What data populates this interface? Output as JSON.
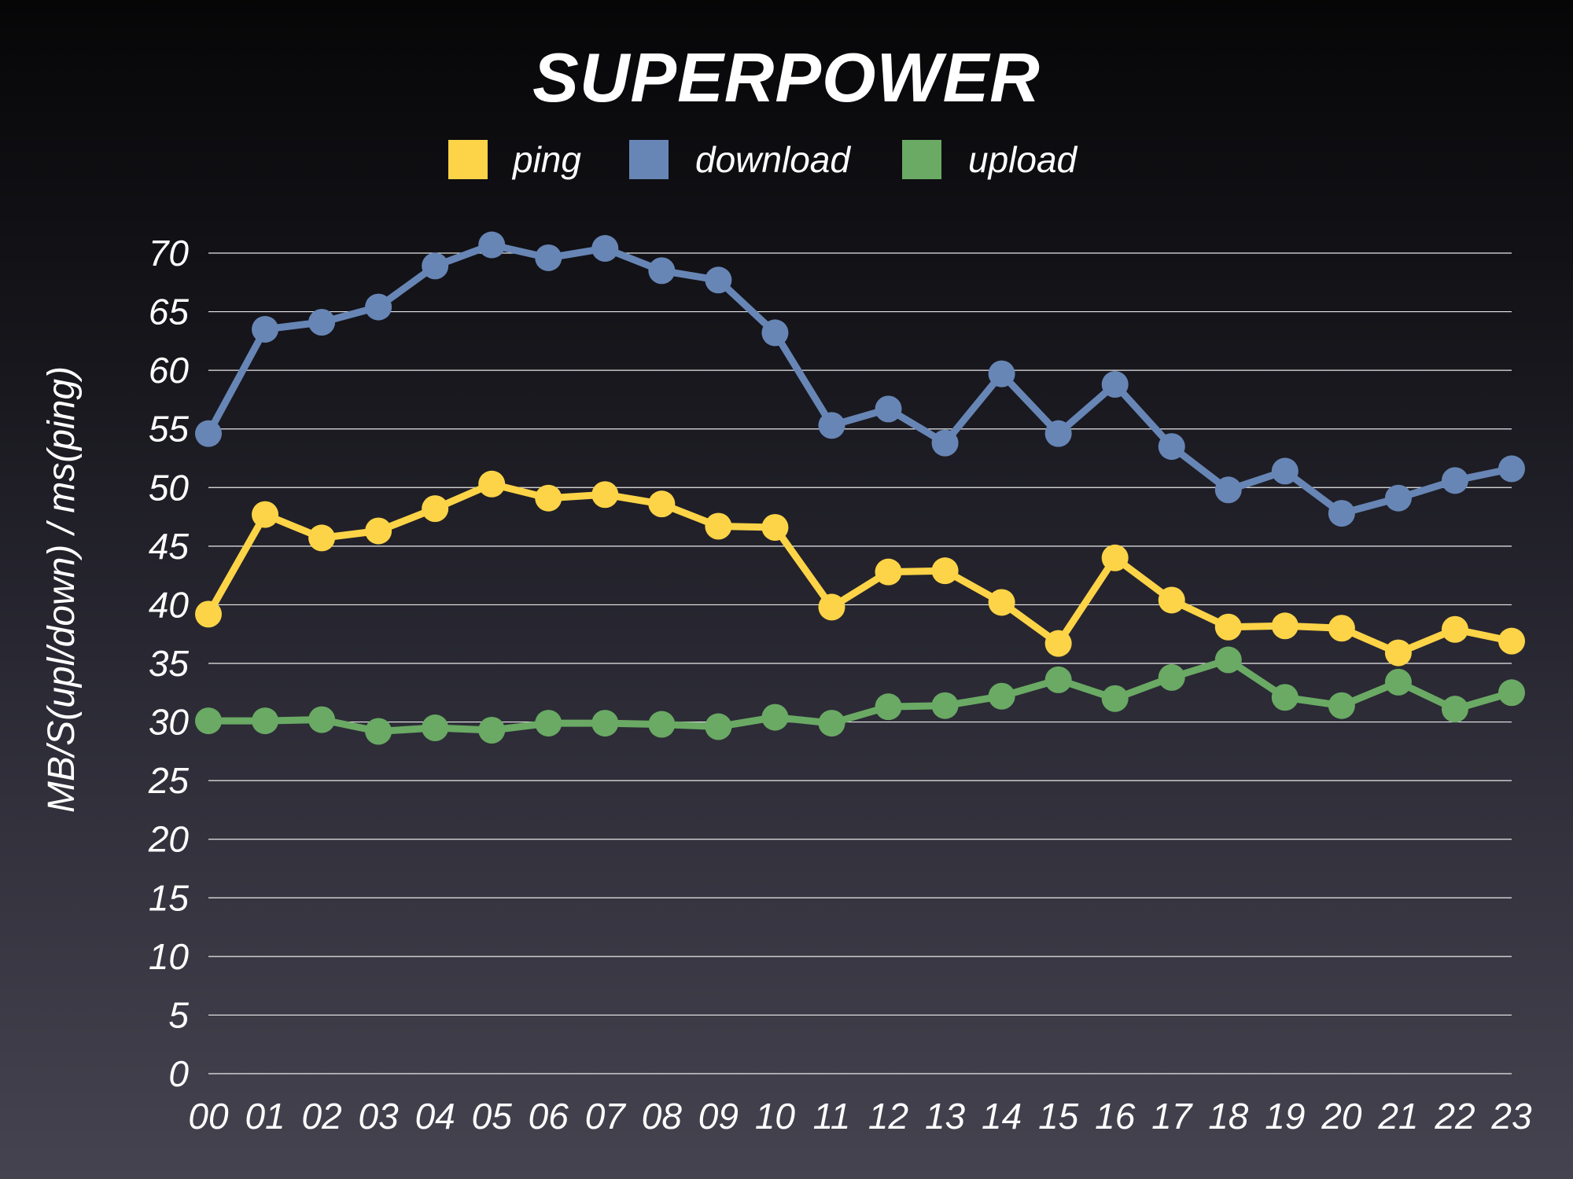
{
  "chart_data": {
    "type": "line",
    "title": "SUPERPOWER",
    "xlabel": "",
    "ylabel": "MB/S(upl/down) / ms(ping)",
    "ylim": [
      0,
      70
    ],
    "yticks": [
      "0",
      "5",
      "10",
      "15",
      "20",
      "25",
      "30",
      "35",
      "40",
      "45",
      "50",
      "55",
      "60",
      "65",
      "70"
    ],
    "categories": [
      "00",
      "01",
      "02",
      "03",
      "04",
      "05",
      "06",
      "07",
      "08",
      "09",
      "10",
      "11",
      "12",
      "13",
      "14",
      "15",
      "16",
      "17",
      "18",
      "19",
      "20",
      "21",
      "22",
      "23"
    ],
    "grid": true,
    "legend_position": "top",
    "series": [
      {
        "name": "ping",
        "color": "#fdd447",
        "values": [
          39.2,
          47.7,
          45.7,
          46.3,
          48.2,
          50.3,
          49.1,
          49.4,
          48.6,
          46.7,
          46.6,
          39.8,
          42.8,
          42.9,
          40.2,
          36.7,
          44.0,
          40.4,
          38.1,
          38.2,
          38.0,
          35.9,
          37.9,
          36.9
        ]
      },
      {
        "name": "download",
        "color": "#6786b6",
        "values": [
          54.6,
          63.5,
          64.1,
          65.4,
          68.9,
          70.7,
          69.6,
          70.4,
          68.5,
          67.7,
          63.2,
          55.3,
          56.7,
          53.8,
          59.7,
          54.6,
          58.8,
          53.5,
          49.8,
          51.4,
          47.8,
          49.1,
          50.6,
          51.6
        ]
      },
      {
        "name": "upload",
        "color": "#6aaa64",
        "values": [
          30.1,
          30.1,
          30.2,
          29.2,
          29.5,
          29.3,
          29.9,
          29.9,
          29.8,
          29.6,
          30.4,
          29.9,
          31.3,
          31.4,
          32.2,
          33.6,
          32.0,
          33.8,
          35.3,
          32.1,
          31.4,
          33.4,
          31.1,
          32.5
        ]
      }
    ]
  }
}
